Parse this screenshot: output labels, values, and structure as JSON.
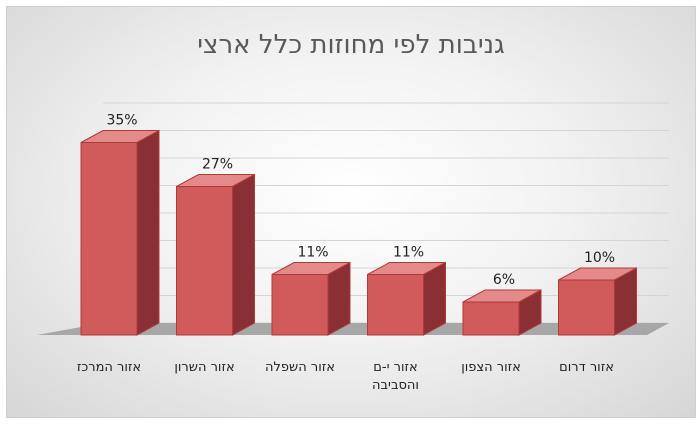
{
  "chart_data": {
    "type": "bar",
    "title": "גניבות לפי מחוזות כלל ארצי",
    "categories": [
      [
        "אזור המרכז"
      ],
      [
        "אזור השרון"
      ],
      [
        "אזור השפלה"
      ],
      [
        "אזור י-ם",
        "והסביבה"
      ],
      [
        "אזור הצפון"
      ],
      [
        "אזור דרום"
      ]
    ],
    "values": [
      35,
      27,
      11,
      11,
      6,
      10
    ],
    "data_labels": [
      "35%",
      "27%",
      "11%",
      "11%",
      "6%",
      "10%"
    ],
    "ylim": [
      0,
      40
    ],
    "grid": true,
    "legend": "none",
    "style": "3d-column",
    "bar_color": "#d15a5a",
    "bar_side_color": "#8a2f33",
    "bar_top_color": "#e58a8a",
    "bar_outline_color": "#b03a3a"
  }
}
